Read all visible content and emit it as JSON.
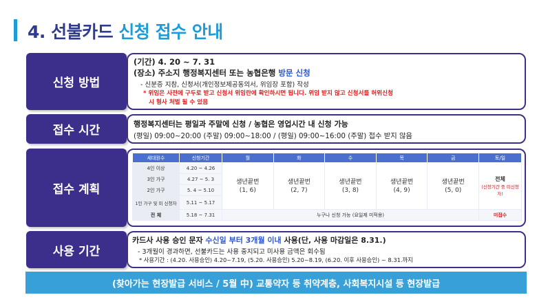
{
  "title": {
    "number": "4.",
    "prefix": "선불카드",
    "suffix": "신청 접수 안내"
  },
  "rows": [
    {
      "label": "신청 방법"
    },
    {
      "label": "접수 시간"
    },
    {
      "label": "접수 계획"
    },
    {
      "label": "사용 기간"
    }
  ],
  "method": {
    "period": "(기간) 4. 20 ~ 7. 31",
    "place_prefix": "(장소) 주소지 행정복지센터 또는 농협은행 ",
    "place_visit": "방문 신청",
    "docs": "- 신분증 지참, 신청서(개인정보제공동의서, 위임장 포함) 작성",
    "warn1": "* 위임은 사전에 구두로 받고 신청서 위임란에 확인하시면 됩니다. 위임 받지 않고 신청서를 허위신청",
    "warn2": "시 형사 처벌 될 수 있음"
  },
  "hours": {
    "line1": "행정복지센터는 평일과 주말에 신청    / 농협은 영업시간 내 신청 가능",
    "line2": "(평일) 09:00~20:00 (주말) 09:00~18:00  / (평일) 09:00~16:00 (주말) 접수 받지 않음"
  },
  "schedule": {
    "headers": [
      "세대원수",
      "신청기간",
      "월",
      "화",
      "수",
      "목",
      "금",
      "토/일"
    ],
    "groups": [
      {
        "name": "4인 이상",
        "period": "4.20 ~ 4.26"
      },
      {
        "name": "3인 가구",
        "period": "4.27 ~ 5. 3"
      },
      {
        "name": "2인 가구",
        "period": "5. 4 ~ 5.10"
      },
      {
        "name": "1인 가구 및 미 신청자",
        "period": "5.11 ~ 5.17"
      }
    ],
    "birth_label": "생년끝번",
    "days": [
      "(1, 6)",
      "(2, 7)",
      "(3, 8)",
      "(4, 9)",
      "(5, 0)"
    ],
    "weekend_main": "전체",
    "weekend_note": "(신청기간 중 미신청자)",
    "total_name": "전 체",
    "total_period": "5.18 ~ 7.31",
    "total_note": "누구나 신청 가능 (요일제 미적용)",
    "total_weekend": "미접수"
  },
  "usage": {
    "line1_a": "카드사 사용 승인 문자 ",
    "line1_b": "수신일 부터 3개월 이내",
    "line1_c": " 사용(단, 사용 마감일은 8.31.)",
    "line2": "- 3개월이 경과하면, 선불카드는 사용 중지되고 미사용 금액은 회수됨",
    "line3": "* 사용기간 : (4.20. 사용승인) 4.20~7.19,  (5.20. 사용승인) 5.20~8.19,  (6.20. 이후 사용승인) ~ 8.31.까지"
  },
  "banner": "(찾아가는 현장발급 서비스 / 5월 中)  교통약자 등 취약계층, 사회복지시설 등 현장발급"
}
